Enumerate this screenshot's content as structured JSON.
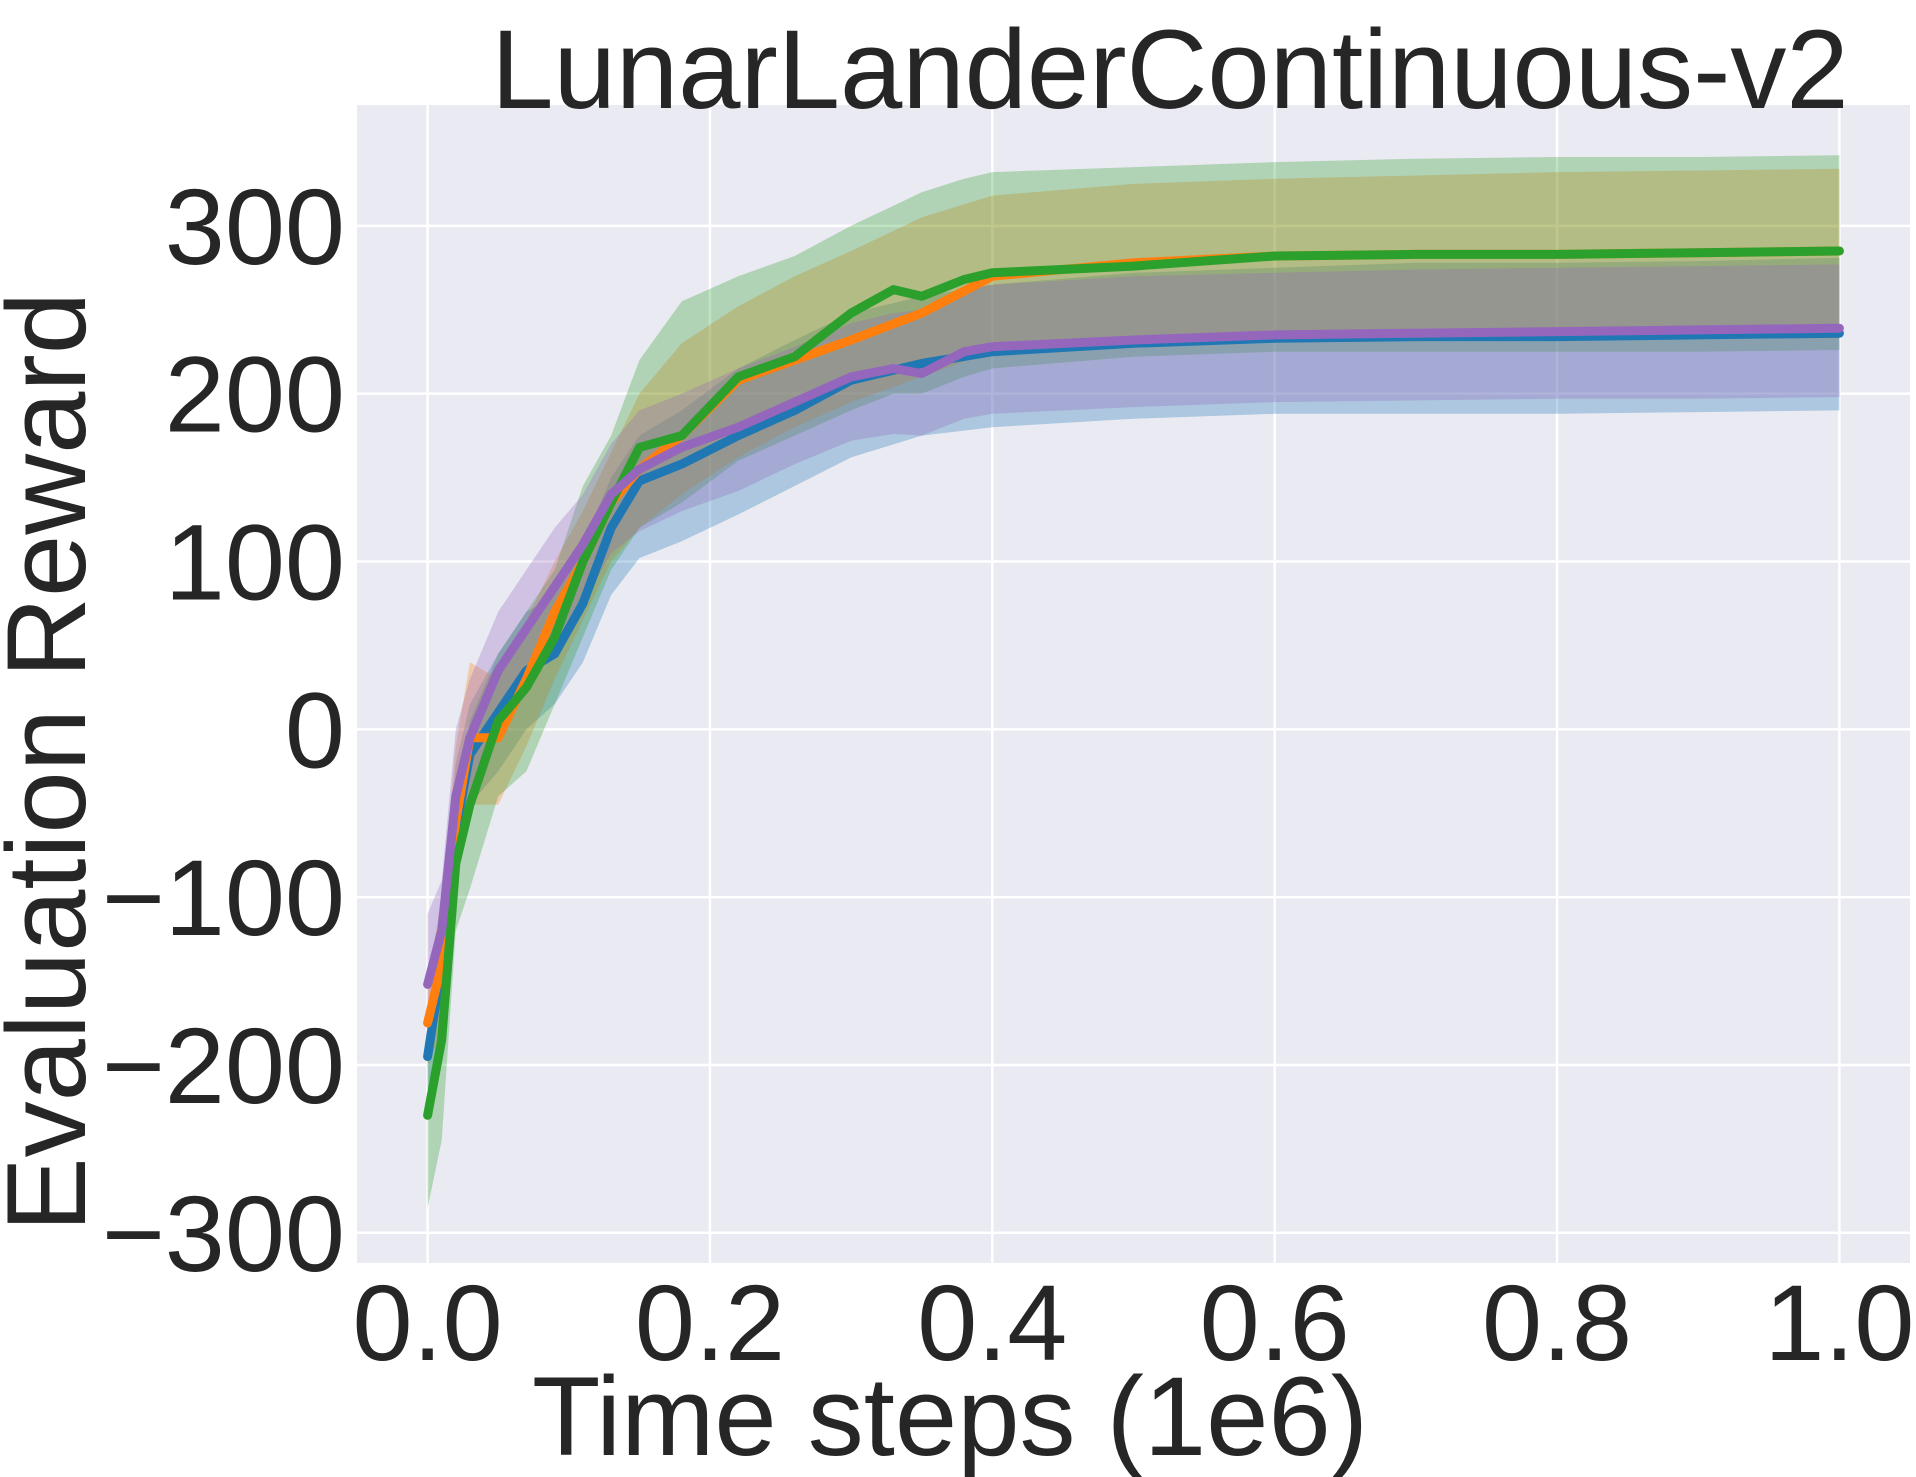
{
  "chart_data": {
    "type": "line",
    "title": "LunarLanderContinuous-v2",
    "xlabel": "Time steps (1e6)",
    "ylabel": "Evaluation Reward",
    "xlim": [
      -0.05,
      1.05
    ],
    "ylim": [
      -318,
      372
    ],
    "xticks": [
      0.0,
      0.2,
      0.4,
      0.6,
      0.8,
      1.0
    ],
    "xtick_labels": [
      "0.0",
      "0.2",
      "0.4",
      "0.6",
      "0.8",
      "1.0"
    ],
    "yticks": [
      -300,
      -200,
      -100,
      0,
      100,
      200,
      300
    ],
    "ytick_labels": [
      "−300",
      "−200",
      "−100",
      "0",
      "100",
      "200",
      "300"
    ],
    "grid": true,
    "background": "#EAEAF2",
    "series": [
      {
        "color": "#1F77B4",
        "x": [
          0.0,
          0.01,
          0.02,
          0.03,
          0.05,
          0.07,
          0.09,
          0.11,
          0.13,
          0.15,
          0.18,
          0.22,
          0.26,
          0.3,
          0.35,
          0.4,
          0.5,
          0.6,
          0.7,
          0.8,
          0.9,
          1.0
        ],
        "y": [
          -195,
          -140,
          -60,
          -15,
          10,
          35,
          45,
          75,
          120,
          148,
          158,
          175,
          190,
          208,
          218,
          225,
          230,
          233,
          234,
          234,
          235,
          236
        ],
        "lower": [
          -215,
          -175,
          -95,
          -45,
          -25,
          0,
          15,
          40,
          80,
          102,
          112,
          128,
          145,
          162,
          175,
          180,
          185,
          188,
          188,
          188,
          189,
          190
        ],
        "upper": [
          -175,
          -105,
          -20,
          15,
          45,
          70,
          80,
          110,
          150,
          175,
          190,
          215,
          232,
          248,
          258,
          265,
          272,
          275,
          278,
          278,
          279,
          281
        ]
      },
      {
        "color": "#FF7F0E",
        "x": [
          0.0,
          0.01,
          0.02,
          0.03,
          0.05,
          0.07,
          0.09,
          0.11,
          0.13,
          0.15,
          0.18,
          0.22,
          0.26,
          0.3,
          0.35,
          0.4,
          0.5,
          0.6,
          0.7,
          0.8,
          0.9,
          1.0
        ],
        "y": [
          -175,
          -140,
          -55,
          -5,
          -5,
          30,
          70,
          100,
          135,
          155,
          175,
          208,
          220,
          232,
          248,
          270,
          278,
          282,
          283,
          283,
          284,
          285
        ],
        "lower": [
          -200,
          -180,
          -95,
          -45,
          -45,
          -10,
          30,
          65,
          100,
          120,
          140,
          162,
          180,
          195,
          210,
          225,
          230,
          232,
          232,
          232,
          233,
          233
        ],
        "upper": [
          -150,
          -100,
          -10,
          40,
          30,
          65,
          100,
          130,
          165,
          200,
          230,
          252,
          270,
          285,
          305,
          318,
          325,
          328,
          330,
          332,
          333,
          334
        ]
      },
      {
        "color": "#2CA02C",
        "x": [
          0.0,
          0.01,
          0.02,
          0.03,
          0.05,
          0.07,
          0.09,
          0.11,
          0.13,
          0.15,
          0.18,
          0.22,
          0.26,
          0.3,
          0.33,
          0.35,
          0.38,
          0.4,
          0.5,
          0.6,
          0.7,
          0.8,
          0.9,
          1.0
        ],
        "y": [
          -230,
          -185,
          -80,
          -45,
          5,
          25,
          55,
          100,
          135,
          168,
          175,
          210,
          222,
          248,
          262,
          258,
          268,
          272,
          276,
          282,
          283,
          283,
          284,
          285
        ],
        "lower": [
          -285,
          -245,
          -120,
          -95,
          -40,
          -25,
          15,
          55,
          95,
          120,
          135,
          160,
          175,
          190,
          200,
          200,
          210,
          215,
          222,
          225,
          225,
          225,
          225,
          226
        ],
        "upper": [
          -185,
          -120,
          -40,
          5,
          45,
          70,
          95,
          145,
          175,
          220,
          255,
          270,
          282,
          300,
          312,
          320,
          328,
          332,
          335,
          338,
          340,
          341,
          341,
          342
        ]
      },
      {
        "color": "#9467BD",
        "x": [
          0.0,
          0.01,
          0.02,
          0.03,
          0.05,
          0.07,
          0.09,
          0.11,
          0.13,
          0.15,
          0.18,
          0.22,
          0.26,
          0.3,
          0.33,
          0.35,
          0.38,
          0.4,
          0.5,
          0.6,
          0.7,
          0.8,
          0.9,
          1.0
        ],
        "y": [
          -152,
          -120,
          -40,
          -5,
          35,
          60,
          85,
          110,
          140,
          155,
          168,
          180,
          195,
          210,
          215,
          212,
          225,
          228,
          232,
          235,
          236,
          237,
          238,
          239
        ],
        "lower": [
          -170,
          -150,
          -80,
          -40,
          0,
          25,
          50,
          75,
          105,
          118,
          130,
          142,
          158,
          172,
          176,
          175,
          185,
          188,
          192,
          195,
          196,
          197,
          197,
          198
        ],
        "upper": [
          -110,
          -90,
          0,
          30,
          70,
          95,
          120,
          140,
          170,
          190,
          200,
          215,
          228,
          242,
          248,
          250,
          262,
          265,
          270,
          272,
          274,
          275,
          276,
          277
        ]
      }
    ]
  }
}
